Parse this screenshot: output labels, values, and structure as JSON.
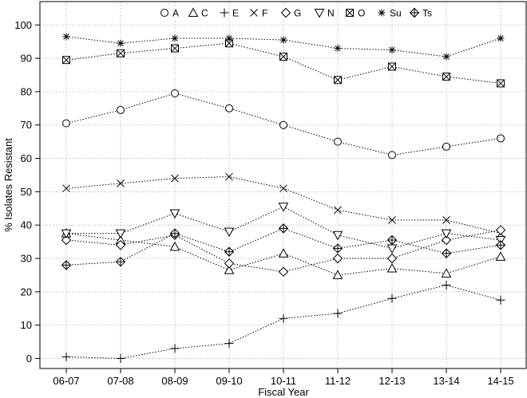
{
  "chart_data": {
    "type": "line",
    "xlabel": "Fiscal Year",
    "ylabel": "% Isolates Resistant",
    "categories": [
      "06-07",
      "07-08",
      "08-09",
      "09-10",
      "10-11",
      "11-12",
      "12-13",
      "13-14",
      "14-15"
    ],
    "yticks": [
      0,
      10,
      20,
      30,
      40,
      50,
      60,
      70,
      80,
      90,
      100
    ],
    "ylim": [
      -3,
      107
    ],
    "grid": true,
    "legend_position": "top",
    "line_style": "dotted",
    "series": [
      {
        "name": "A",
        "marker": "circle",
        "values": [
          70.5,
          74.5,
          79.5,
          75,
          70,
          65,
          61,
          63.5,
          66
        ]
      },
      {
        "name": "C",
        "marker": "triangle-up",
        "values": [
          37.5,
          35.5,
          33.5,
          26.5,
          31.5,
          25,
          27,
          25.5,
          30.5
        ]
      },
      {
        "name": "E",
        "marker": "plus",
        "values": [
          0.5,
          0,
          3,
          4.5,
          12,
          13.5,
          18,
          22,
          17.5
        ]
      },
      {
        "name": "F",
        "marker": "x",
        "values": [
          51,
          52.5,
          54,
          54.5,
          51,
          44.5,
          41.5,
          41.5,
          37.5
        ]
      },
      {
        "name": "G",
        "marker": "diamond",
        "values": [
          35.5,
          34,
          37,
          28.5,
          26,
          30,
          30,
          35.5,
          38.5
        ]
      },
      {
        "name": "N",
        "marker": "triangle-down",
        "values": [
          37.5,
          37.5,
          43.5,
          38,
          45.5,
          37,
          33,
          37.5,
          35.5
        ]
      },
      {
        "name": "O",
        "marker": "boxed-x",
        "values": [
          89.5,
          91.5,
          93,
          94.5,
          90.5,
          83.5,
          87.5,
          84.5,
          82.5
        ]
      },
      {
        "name": "Su",
        "marker": "asterisk",
        "values": [
          96.5,
          94.5,
          96,
          96,
          95.5,
          93,
          92.5,
          90.5,
          96
        ]
      },
      {
        "name": "Ts",
        "marker": "circle-plus",
        "values": [
          28,
          29,
          37.5,
          32,
          39,
          33,
          35.5,
          31.5,
          34
        ]
      }
    ]
  }
}
